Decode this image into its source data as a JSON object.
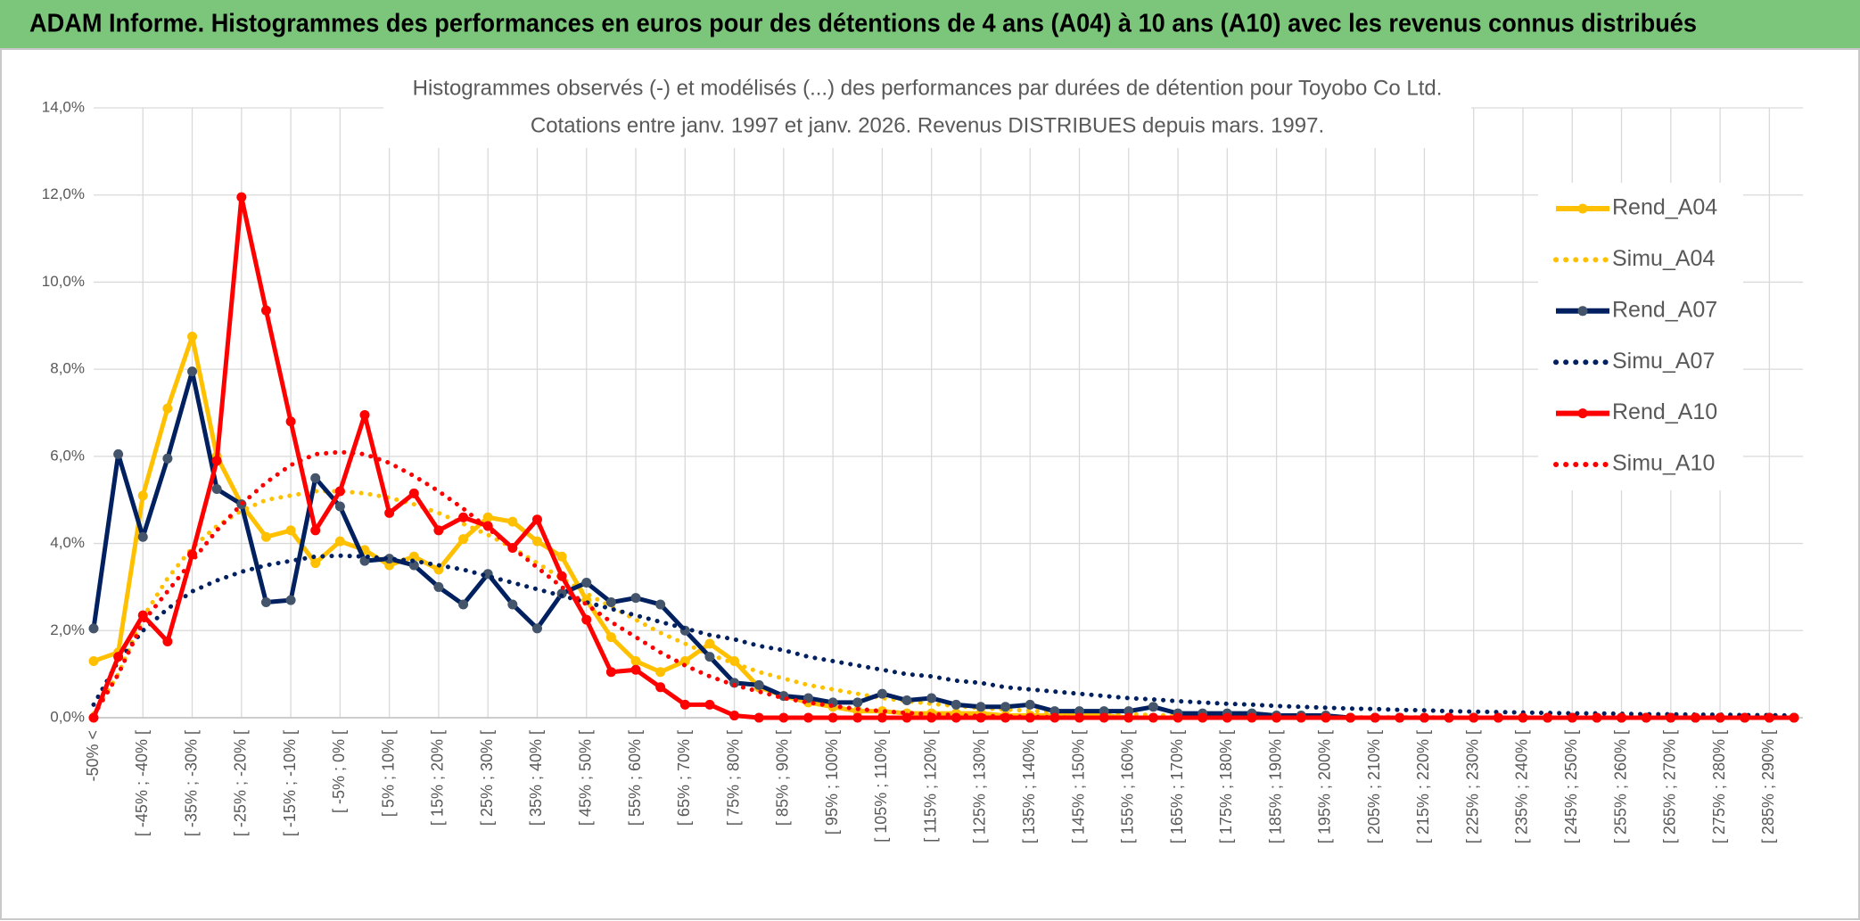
{
  "header": {
    "title": "ADAM Informe. Histogrammes des performances en euros pour des détentions de 4 ans (A04) à 10 ans (A10) avec les revenus connus distribués"
  },
  "chart_data": {
    "type": "line",
    "title": "Histogrammes observés (-) et modélisés (...) des performances par durées de détention pour Toyobo Co Ltd.",
    "subtitle": "Cotations entre janv. 1997 et janv. 2026. Revenus DISTRIBUES depuis mars. 1997.",
    "categories": [
      "-50% <",
      null,
      "[ -45% ; -40% [",
      null,
      "[ -35% ; -30% [",
      null,
      "[ -25% ; -20% [",
      null,
      "[ -15% ; -10% [",
      null,
      "[ -5% ; 0% [",
      null,
      "[ 5% ; 10% [",
      null,
      "[ 15% ; 20% [",
      null,
      "[ 25% ; 30% [",
      null,
      "[ 35% ; 40% [",
      null,
      "[ 45% ; 50% [",
      null,
      "[ 55% ; 60% [",
      null,
      "[ 65% ; 70% [",
      null,
      "[ 75% ; 80% [",
      null,
      "[ 85% ; 90% [",
      null,
      "[ 95% ; 100% [",
      null,
      "[ 105% ; 110% [",
      null,
      "[ 115% ; 120% [",
      null,
      "[ 125% ; 130% [",
      null,
      "[ 135% ; 140% [",
      null,
      "[ 145% ; 150% [",
      null,
      "[ 155% ; 160% [",
      null,
      "[ 165% ; 170% [",
      null,
      "[ 175% ; 180% [",
      null,
      "[ 185% ; 190% [",
      null,
      "[ 195% ; 200% [",
      null,
      "[ 205% ; 210% [",
      null,
      "[ 215% ; 220% [",
      null,
      "[ 225% ; 230% [",
      null,
      "[ 235% ; 240% [",
      null,
      "[ 245% ; 250% [",
      null,
      "[ 255% ; 260% [",
      null,
      "[ 265% ; 270% [",
      null,
      "[ 275% ; 280% [",
      null,
      "[ 285% ; 290% [",
      null
    ],
    "series": [
      {
        "name": "Rend_A04",
        "color": "#FFC000",
        "style": "solid",
        "markers": true,
        "values": [
          1.3,
          1.5,
          5.1,
          7.1,
          8.75,
          6.0,
          4.9,
          4.15,
          4.3,
          3.55,
          4.05,
          3.85,
          3.5,
          3.7,
          3.4,
          4.1,
          4.6,
          4.5,
          4.05,
          3.7,
          2.7,
          1.85,
          1.3,
          1.05,
          1.3,
          1.7,
          1.3,
          0.7,
          0.5,
          0.35,
          0.25,
          0.15,
          0.15,
          0.1,
          0.1,
          0.1,
          0.1,
          0.05,
          0.05,
          0.05,
          0.05,
          0.05,
          0,
          0,
          0,
          0,
          0,
          0,
          0,
          0,
          0,
          0,
          0,
          0,
          0,
          0,
          0,
          0,
          0,
          0,
          0,
          0,
          0,
          0,
          0,
          0,
          0,
          0,
          0,
          0
        ]
      },
      {
        "name": "Simu_A04",
        "color": "#FFC000",
        "style": "dotted",
        "markers": false,
        "values": [
          0.1,
          1.0,
          2.3,
          3.2,
          3.9,
          4.4,
          4.75,
          5.0,
          5.1,
          5.2,
          5.2,
          5.15,
          5.05,
          4.9,
          4.7,
          4.45,
          4.2,
          3.9,
          3.55,
          3.2,
          2.85,
          2.55,
          2.25,
          1.95,
          1.7,
          1.45,
          1.25,
          1.05,
          0.9,
          0.75,
          0.65,
          0.55,
          0.45,
          0.38,
          0.32,
          0.27,
          0.22,
          0.19,
          0.16,
          0.13,
          0.11,
          0.09,
          0.08,
          0.06,
          0.05,
          0.04,
          0.03,
          0.03,
          0.02,
          0.02,
          0.02,
          0.01,
          0.01,
          0.01,
          0.01,
          0.01,
          0,
          0,
          0,
          0,
          0,
          0,
          0,
          0,
          0,
          0,
          0,
          0,
          0,
          0
        ]
      },
      {
        "name": "Rend_A07",
        "color": "#002060",
        "style": "solid",
        "markers": true,
        "values": [
          2.05,
          6.05,
          4.15,
          5.95,
          7.95,
          5.25,
          4.9,
          2.65,
          2.7,
          5.5,
          4.85,
          3.6,
          3.65,
          3.5,
          3.0,
          2.6,
          3.3,
          2.6,
          2.05,
          2.85,
          3.1,
          2.65,
          2.75,
          2.6,
          2.0,
          1.4,
          0.8,
          0.75,
          0.5,
          0.45,
          0.35,
          0.35,
          0.55,
          0.4,
          0.45,
          0.3,
          0.25,
          0.25,
          0.3,
          0.15,
          0.15,
          0.15,
          0.15,
          0.25,
          0.1,
          0.1,
          0.1,
          0.1,
          0.05,
          0.05,
          0.05,
          0,
          0,
          0,
          0,
          0,
          0,
          0,
          0,
          0,
          0,
          0,
          0,
          0,
          0,
          0,
          0,
          0,
          0,
          0
        ]
      },
      {
        "name": "Simu_A07",
        "color": "#002060",
        "style": "dotted",
        "markers": false,
        "values": [
          0.3,
          1.3,
          2.0,
          2.5,
          2.9,
          3.15,
          3.35,
          3.5,
          3.6,
          3.7,
          3.72,
          3.7,
          3.65,
          3.6,
          3.5,
          3.4,
          3.25,
          3.1,
          2.95,
          2.8,
          2.65,
          2.5,
          2.35,
          2.2,
          2.05,
          1.9,
          1.8,
          1.65,
          1.55,
          1.4,
          1.3,
          1.2,
          1.1,
          1.0,
          0.95,
          0.85,
          0.8,
          0.7,
          0.65,
          0.6,
          0.55,
          0.5,
          0.45,
          0.42,
          0.38,
          0.35,
          0.32,
          0.3,
          0.27,
          0.25,
          0.23,
          0.21,
          0.2,
          0.18,
          0.17,
          0.15,
          0.14,
          0.13,
          0.12,
          0.11,
          0.1,
          0.1,
          0.09,
          0.08,
          0.08,
          0.07,
          0.07,
          0.06,
          0.06,
          0.05
        ]
      },
      {
        "name": "Rend_A10",
        "color": "#FF0000",
        "style": "solid",
        "markers": true,
        "values": [
          0,
          1.4,
          2.35,
          1.75,
          3.75,
          5.9,
          11.95,
          9.35,
          6.8,
          4.3,
          5.2,
          6.95,
          4.7,
          5.15,
          4.3,
          4.6,
          4.4,
          3.9,
          4.55,
          3.25,
          2.25,
          1.05,
          1.1,
          0.7,
          0.3,
          0.3,
          0.05,
          0,
          0,
          0,
          0,
          0,
          0,
          0,
          0,
          0,
          0,
          0,
          0,
          0,
          0,
          0,
          0,
          0,
          0,
          0,
          0,
          0,
          0,
          0,
          0,
          0,
          0,
          0,
          0,
          0,
          0,
          0,
          0,
          0,
          0,
          0,
          0,
          0,
          0,
          0,
          0,
          0,
          0,
          0
        ]
      },
      {
        "name": "Simu_A10",
        "color": "#FF0000",
        "style": "dotted",
        "markers": false,
        "values": [
          0.05,
          1.0,
          2.2,
          2.9,
          3.6,
          4.3,
          4.9,
          5.4,
          5.8,
          6.05,
          6.1,
          6.05,
          5.85,
          5.55,
          5.2,
          4.8,
          4.35,
          3.9,
          3.45,
          3.0,
          2.6,
          2.2,
          1.85,
          1.5,
          1.2,
          0.95,
          0.75,
          0.6,
          0.45,
          0.35,
          0.27,
          0.2,
          0.15,
          0.11,
          0.08,
          0.06,
          0.04,
          0.03,
          0.02,
          0.01,
          0,
          0,
          0,
          0,
          0,
          0,
          0,
          0,
          0,
          0,
          0,
          0,
          0,
          0,
          0,
          0,
          0,
          0,
          0,
          0,
          0,
          0,
          0,
          0,
          0,
          0,
          0,
          0,
          0,
          0
        ]
      }
    ],
    "ylim": [
      0,
      14
    ],
    "yticks": [
      {
        "value": 0,
        "label": "0,0%"
      },
      {
        "value": 2,
        "label": "2,0%"
      },
      {
        "value": 4,
        "label": "4,0%"
      },
      {
        "value": 6,
        "label": "6,0%"
      },
      {
        "value": 8,
        "label": "8,0%"
      },
      {
        "value": 10,
        "label": "10,0%"
      },
      {
        "value": 12,
        "label": "12,0%"
      },
      {
        "value": 14,
        "label": "14,0%"
      }
    ],
    "grid": true,
    "legend": "right"
  }
}
